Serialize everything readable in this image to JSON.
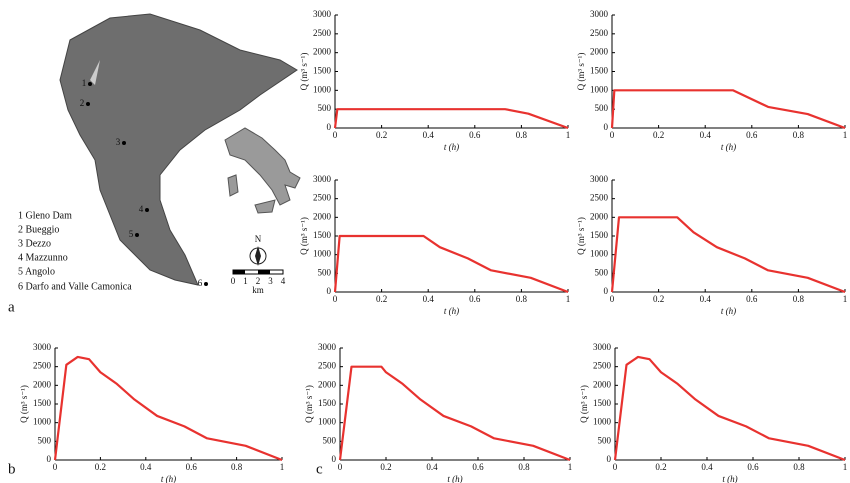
{
  "figure": {
    "panel_labels": [
      "a",
      "b",
      "c"
    ],
    "map": {
      "legend": [
        "1 Gleno Dam",
        "2 Bueggio",
        "3 Dezzo",
        "4 Mazzunno",
        "5 Angolo",
        "6 Darfo and Valle Camonica"
      ],
      "site_numbers": [
        "1",
        "2",
        "3",
        "4",
        "5",
        "6"
      ],
      "north": "N",
      "scale_ticks": [
        "0",
        "1",
        "2",
        "3",
        "4"
      ],
      "scale_unit": "km"
    }
  },
  "chart_data": [
    {
      "type": "line",
      "x": [
        0,
        0.01,
        0.73,
        0.83,
        1
      ],
      "series": [
        {
          "color": "#e8322f",
          "values": [
            0,
            500,
            500,
            380,
            0
          ]
        }
      ],
      "xlabel": "t (h)",
      "ylabel": "Q (m³ s⁻¹)",
      "xlim": [
        0,
        1
      ],
      "ylim": [
        0,
        3000
      ],
      "xticks": [
        0,
        0.2,
        0.4,
        0.6,
        0.8,
        1
      ],
      "yticks": [
        0,
        500,
        1000,
        1500,
        2000,
        2500,
        3000
      ]
    },
    {
      "type": "line",
      "x": [
        0,
        0.01,
        0.52,
        0.67,
        0.84,
        1
      ],
      "series": [
        {
          "color": "#e8322f",
          "values": [
            0,
            1000,
            1000,
            560,
            370,
            0
          ]
        }
      ],
      "xlabel": "t (h)",
      "ylabel": "Q (m³ s⁻¹)",
      "xlim": [
        0,
        1
      ],
      "ylim": [
        0,
        3000
      ],
      "xticks": [
        0,
        0.2,
        0.4,
        0.6,
        0.8,
        1
      ],
      "yticks": [
        0,
        500,
        1000,
        1500,
        2000,
        2500,
        3000
      ]
    },
    {
      "type": "line",
      "x": [
        0,
        0.02,
        0.38,
        0.45,
        0.57,
        0.67,
        0.84,
        1
      ],
      "series": [
        {
          "color": "#e8322f",
          "values": [
            0,
            1500,
            1500,
            1200,
            900,
            580,
            380,
            0
          ]
        }
      ],
      "xlabel": "t (h)",
      "ylabel": "Q (m³ s⁻¹)",
      "xlim": [
        0,
        1
      ],
      "ylim": [
        0,
        3000
      ],
      "xticks": [
        0,
        0.2,
        0.4,
        0.6,
        0.8,
        1
      ],
      "yticks": [
        0,
        500,
        1000,
        1500,
        2000,
        2500,
        3000
      ]
    },
    {
      "type": "line",
      "x": [
        0,
        0.03,
        0.28,
        0.35,
        0.45,
        0.57,
        0.67,
        0.84,
        1
      ],
      "series": [
        {
          "color": "#e8322f",
          "values": [
            0,
            2000,
            2000,
            1600,
            1200,
            900,
            580,
            380,
            0
          ]
        }
      ],
      "xlabel": "t (h)",
      "ylabel": "Q (m³ s⁻¹)",
      "xlim": [
        0,
        1
      ],
      "ylim": [
        0,
        3000
      ],
      "xticks": [
        0,
        0.2,
        0.4,
        0.6,
        0.8,
        1
      ],
      "yticks": [
        0,
        500,
        1000,
        1500,
        2000,
        2500,
        3000
      ]
    },
    {
      "type": "line",
      "x": [
        0,
        0.05,
        0.1,
        0.15,
        0.2,
        0.27,
        0.35,
        0.45,
        0.57,
        0.67,
        0.84,
        1
      ],
      "series": [
        {
          "color": "#e8322f",
          "values": [
            0,
            2550,
            2760,
            2700,
            2350,
            2050,
            1620,
            1180,
            900,
            580,
            380,
            0
          ]
        }
      ],
      "xlabel": "t (h)",
      "ylabel": "Q (m³ s⁻¹)",
      "xlim": [
        0,
        1
      ],
      "ylim": [
        0,
        3000
      ],
      "xticks": [
        0,
        0.2,
        0.4,
        0.6,
        0.8,
        1
      ],
      "yticks": [
        0,
        500,
        1000,
        1500,
        2000,
        2500,
        3000
      ]
    },
    {
      "type": "line",
      "x": [
        0,
        0.05,
        0.18,
        0.2,
        0.27,
        0.35,
        0.45,
        0.57,
        0.67,
        0.84,
        1
      ],
      "series": [
        {
          "color": "#e8322f",
          "values": [
            0,
            2500,
            2500,
            2350,
            2050,
            1620,
            1180,
            900,
            580,
            380,
            0
          ]
        }
      ],
      "xlabel": "t (h)",
      "ylabel": "Q (m³ s⁻¹)",
      "xlim": [
        0,
        1
      ],
      "ylim": [
        0,
        3000
      ],
      "xticks": [
        0,
        0.2,
        0.4,
        0.6,
        0.8,
        1
      ],
      "yticks": [
        0,
        500,
        1000,
        1500,
        2000,
        2500,
        3000
      ]
    },
    {
      "type": "line",
      "x": [
        0,
        0.05,
        0.1,
        0.15,
        0.2,
        0.27,
        0.35,
        0.45,
        0.57,
        0.67,
        0.84,
        1
      ],
      "series": [
        {
          "color": "#e8322f",
          "values": [
            0,
            2550,
            2760,
            2700,
            2350,
            2050,
            1620,
            1180,
            900,
            580,
            380,
            0
          ]
        }
      ],
      "xlabel": "t (h)",
      "ylabel": "Q (m³ s⁻¹)",
      "xlim": [
        0,
        1
      ],
      "ylim": [
        0,
        3000
      ],
      "xticks": [
        0,
        0.2,
        0.4,
        0.6,
        0.8,
        1
      ],
      "yticks": [
        0,
        500,
        1000,
        1500,
        2000,
        2500,
        3000
      ]
    }
  ]
}
